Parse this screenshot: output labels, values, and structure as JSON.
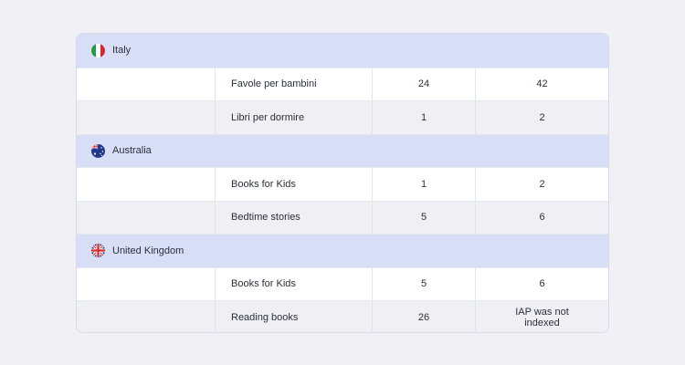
{
  "groups": [
    {
      "country": "Italy",
      "flag_icon": "italy-flag-icon",
      "rows": [
        {
          "keyword": "Favole per bambini",
          "col1": "24",
          "col2": "42"
        },
        {
          "keyword": "Libri per dormire",
          "col1": "1",
          "col2": "2"
        }
      ]
    },
    {
      "country": "Australia",
      "flag_icon": "australia-flag-icon",
      "rows": [
        {
          "keyword": "Books for Kids",
          "col1": "1",
          "col2": "2"
        },
        {
          "keyword": "Bedtime stories",
          "col1": "5",
          "col2": "6"
        }
      ]
    },
    {
      "country": "United Kingdom",
      "flag_icon": "uk-flag-icon",
      "rows": [
        {
          "keyword": "Books for Kids",
          "col1": "5",
          "col2": "6"
        },
        {
          "keyword": "Reading books",
          "col1": "26",
          "col2": "IAP was not indexed"
        }
      ]
    }
  ],
  "colors": {
    "page_bg": "#f0f0f5",
    "group_bg": "#d9def7",
    "row_alt_bg": "#efeff4",
    "text": "#2b2f3a"
  }
}
